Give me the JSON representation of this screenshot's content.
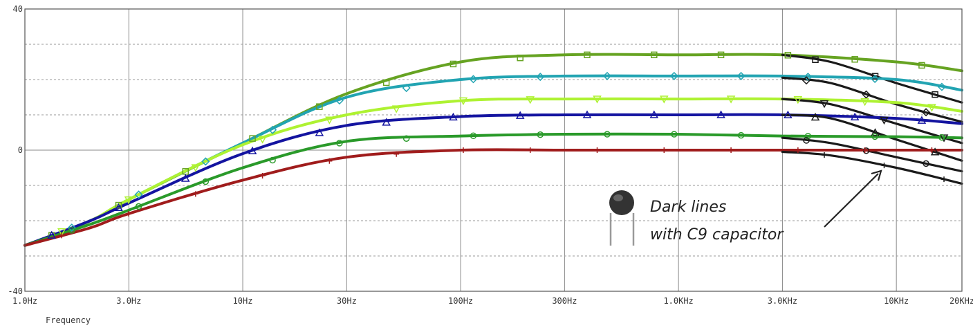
{
  "chart_data": {
    "type": "line",
    "title": "",
    "xlabel": "Frequency",
    "ylabel": "",
    "xscale": "log",
    "xlim": [
      1,
      20000
    ],
    "ylim": [
      -40,
      40
    ],
    "grid": true,
    "x_tick_labels": [
      "1.0Hz",
      "3.0Hz",
      "10Hz",
      "30Hz",
      "100Hz",
      "300Hz",
      "1.0KHz",
      "3.0KHz",
      "10KHz",
      "20KHz"
    ],
    "x_ticks": [
      1,
      3,
      10,
      30,
      100,
      300,
      1000,
      3000,
      10000,
      20000
    ],
    "y_tick_labels": [
      "40",
      "0",
      "-40"
    ],
    "y_ticks": [
      40,
      0,
      -40
    ],
    "annotation": {
      "line1": "Dark lines",
      "line2": "with C9 capacitor",
      "icon": "capacitor-icon"
    },
    "series": [
      {
        "color": "#66a322",
        "marker": "square",
        "points": [
          [
            1,
            -27
          ],
          [
            2,
            -20
          ],
          [
            3,
            -14
          ],
          [
            10,
            2
          ],
          [
            30,
            16
          ],
          [
            100,
            25
          ],
          [
            300,
            27
          ],
          [
            1000,
            27
          ],
          [
            3000,
            27
          ],
          [
            10000,
            25
          ],
          [
            20000,
            22.5
          ]
        ]
      },
      {
        "color": "#1a1a1a",
        "marker": "square",
        "points": [
          [
            3000,
            27
          ],
          [
            5000,
            25
          ],
          [
            10000,
            19
          ],
          [
            20000,
            13.5
          ]
        ]
      },
      {
        "color": "#22a4b2",
        "marker": "diamond",
        "points": [
          [
            1,
            -27
          ],
          [
            2,
            -20
          ],
          [
            3,
            -14
          ],
          [
            10,
            2
          ],
          [
            30,
            15
          ],
          [
            100,
            20
          ],
          [
            300,
            21
          ],
          [
            1000,
            21
          ],
          [
            3000,
            21
          ],
          [
            10000,
            20
          ],
          [
            20000,
            17
          ]
        ]
      },
      {
        "color": "#1a1a1a",
        "marker": "diamond",
        "points": [
          [
            3000,
            20.5
          ],
          [
            5000,
            19
          ],
          [
            10000,
            13
          ],
          [
            20000,
            8
          ]
        ]
      },
      {
        "color": "#aef232",
        "marker": "triangle-down",
        "points": [
          [
            1,
            -27
          ],
          [
            2,
            -20
          ],
          [
            3,
            -14
          ],
          [
            10,
            1.5
          ],
          [
            30,
            10
          ],
          [
            100,
            14
          ],
          [
            300,
            14.5
          ],
          [
            1000,
            14.5
          ],
          [
            3000,
            14.5
          ],
          [
            10000,
            13.5
          ],
          [
            20000,
            11
          ]
        ]
      },
      {
        "color": "#1a1a1a",
        "marker": "triangle-down",
        "points": [
          [
            3000,
            14.5
          ],
          [
            5000,
            13
          ],
          [
            10000,
            7.5
          ],
          [
            20000,
            2
          ]
        ]
      },
      {
        "color": "#1414a0",
        "marker": "triangle-up",
        "points": [
          [
            1,
            -27
          ],
          [
            2,
            -20
          ],
          [
            3,
            -15
          ],
          [
            10,
            -1
          ],
          [
            30,
            7
          ],
          [
            100,
            9.5
          ],
          [
            300,
            10
          ],
          [
            1000,
            10
          ],
          [
            3000,
            10
          ],
          [
            10000,
            9
          ],
          [
            20000,
            7.5
          ]
        ]
      },
      {
        "color": "#1a1a1a",
        "marker": "triangle-up",
        "points": [
          [
            3000,
            10
          ],
          [
            5000,
            9
          ],
          [
            10000,
            3
          ],
          [
            20000,
            -3
          ]
        ]
      },
      {
        "color": "#2a9a2a",
        "marker": "circle",
        "points": [
          [
            1,
            -27
          ],
          [
            2,
            -21
          ],
          [
            3,
            -17
          ],
          [
            10,
            -5
          ],
          [
            30,
            2.5
          ],
          [
            100,
            4
          ],
          [
            300,
            4.5
          ],
          [
            1000,
            4.5
          ],
          [
            3000,
            4
          ],
          [
            10000,
            3.8
          ],
          [
            20000,
            3.5
          ]
        ]
      },
      {
        "color": "#1a1a1a",
        "marker": "circle",
        "points": [
          [
            3000,
            3.5
          ],
          [
            5000,
            2
          ],
          [
            10000,
            -2
          ],
          [
            20000,
            -6
          ]
        ]
      },
      {
        "color": "#a01c1c",
        "marker": "plus",
        "points": [
          [
            1,
            -27
          ],
          [
            2,
            -22
          ],
          [
            3,
            -18
          ],
          [
            10,
            -8.5
          ],
          [
            30,
            -2
          ],
          [
            100,
            0
          ],
          [
            300,
            0
          ],
          [
            1000,
            0
          ],
          [
            3000,
            0
          ],
          [
            10000,
            0
          ],
          [
            20000,
            0
          ]
        ]
      },
      {
        "color": "#1a1a1a",
        "marker": "plus",
        "points": [
          [
            3000,
            -0.5
          ],
          [
            5000,
            -1.5
          ],
          [
            10000,
            -5
          ],
          [
            20000,
            -9.5
          ]
        ]
      }
    ]
  }
}
